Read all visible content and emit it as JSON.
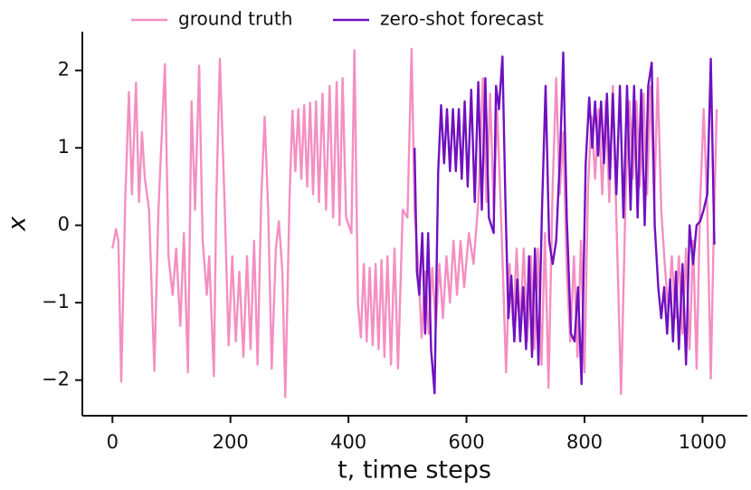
{
  "chart_data": {
    "type": "line",
    "xlabel": "t, time steps",
    "ylabel": "x",
    "xlim": [
      -51,
      1076
    ],
    "ylim": [
      -2.46,
      2.5
    ],
    "xticks": [
      0,
      200,
      400,
      600,
      800,
      1000
    ],
    "yticks": [
      {
        "value": -2,
        "label": "−2"
      },
      {
        "value": -1,
        "label": "−1"
      },
      0,
      1,
      2
    ],
    "legend": "top",
    "series": [
      {
        "name": "ground truth",
        "color": "#f48fc1",
        "x": [
          0,
          6,
          10,
          15,
          22,
          28,
          33,
          40,
          45,
          50,
          55,
          62,
          71,
          78,
          89,
          95,
          102,
          108,
          115,
          121,
          128,
          134,
          140,
          147,
          153,
          160,
          164,
          172,
          176,
          182,
          190,
          197,
          203,
          209,
          215,
          222,
          228,
          234,
          240,
          246,
          252,
          258,
          264,
          270,
          277,
          282,
          288,
          293,
          300,
          305,
          310,
          315,
          320,
          325,
          330,
          335,
          340,
          345,
          350,
          356,
          362,
          368,
          374,
          380,
          385,
          390,
          396,
          405,
          410,
          416,
          421,
          426,
          431,
          436,
          441,
          446,
          451,
          456,
          461,
          466,
          472,
          478,
          484,
          492,
          500,
          507,
          512,
          518,
          524,
          530,
          536,
          542,
          548,
          554,
          560,
          566,
          572,
          578,
          584,
          590,
          596,
          604,
          612,
          620,
          628,
          634,
          640,
          646,
          652,
          660,
          667,
          673,
          679,
          685,
          691,
          697,
          703,
          709,
          715,
          721,
          727,
          733,
          739,
          746,
          752,
          758,
          764,
          770,
          776,
          782,
          788,
          794,
          800,
          806,
          812,
          818,
          824,
          830,
          836,
          842,
          848,
          854,
          862,
          870,
          876,
          882,
          888,
          894,
          900,
          906,
          912,
          918,
          924,
          930,
          936,
          942,
          948,
          954,
          960,
          966,
          972,
          978,
          984,
          990,
          996,
          1002,
          1008,
          1014,
          1019,
          1024
        ],
        "values": [
          -0.3,
          -0.05,
          -0.2,
          -2.02,
          0.4,
          1.72,
          0.4,
          1.84,
          0.3,
          1.2,
          0.6,
          0.2,
          -1.88,
          0.2,
          2.08,
          -0.4,
          -0.9,
          -0.3,
          -1.3,
          -0.1,
          -1.9,
          1.6,
          0.2,
          2.06,
          -0.2,
          -0.9,
          -0.4,
          -1.95,
          0.3,
          2.15,
          0.3,
          -1.55,
          -0.4,
          -1.5,
          -0.6,
          -1.7,
          -0.4,
          -1.6,
          -0.2,
          -1.8,
          0.3,
          1.4,
          0.2,
          -1.85,
          -0.3,
          0.05,
          -0.6,
          -2.22,
          0.3,
          1.48,
          0.7,
          1.5,
          0.6,
          1.55,
          0.5,
          1.58,
          0.4,
          1.6,
          0.3,
          1.7,
          0.2,
          1.8,
          0.1,
          1.85,
          0,
          1.9,
          0.1,
          -0.1,
          2.26,
          -1.0,
          -1.45,
          -0.5,
          -1.5,
          -0.55,
          -1.55,
          -0.5,
          -1.6,
          -0.45,
          -1.7,
          -0.4,
          -1.8,
          -0.3,
          -1.85,
          0.2,
          0.1,
          2.28,
          0.2,
          -0.5,
          -1.45,
          -0.6,
          -1.4,
          -0.55,
          -1.3,
          -0.5,
          -1.2,
          -0.4,
          -1.0,
          -0.2,
          -0.9,
          -0.2,
          -0.8,
          -0.1,
          -0.5,
          0.3,
          1.9,
          0.3,
          1.7,
          0.2,
          1.5,
          -0.2,
          -1.9,
          -0.5,
          -1.3,
          -0.3,
          -1.3,
          -0.3,
          -1.5,
          -0.4,
          -1.6,
          -0.3,
          -1.8,
          -0.1,
          -2.1,
          0.5,
          1.9,
          0.4,
          1.2,
          -0.6,
          -1.5,
          -0.4,
          -1.7,
          -0.2,
          -1.9,
          0.5,
          1.4,
          0.6,
          1.5,
          0.4,
          1.6,
          0.3,
          1.8,
          0.1,
          -2.18,
          0.5,
          1.6,
          0.6,
          1.6,
          0.5,
          1.7,
          0.4,
          1.8,
          0.3,
          1.9,
          0.2,
          -0.5,
          -1.1,
          -0.4,
          -1.2,
          -0.4,
          -1.4,
          -0.3,
          -1.6,
          -0.2,
          -1.85,
          0.3,
          1.5,
          0.2,
          -1.98,
          -0.1,
          1.5
        ]
      },
      {
        "name": "zero-shot forecast",
        "color": "#7010c0",
        "x": [
          512,
          516,
          520,
          525,
          530,
          535,
          540,
          546,
          552,
          557,
          562,
          567,
          572,
          577,
          582,
          587,
          592,
          597,
          602,
          608,
          614,
          620,
          626,
          632,
          638,
          646,
          650,
          655,
          661,
          666,
          671,
          676,
          681,
          686,
          691,
          696,
          701,
          706,
          711,
          716,
          722,
          728,
          734,
          740,
          746,
          752,
          759,
          764,
          770,
          777,
          783,
          789,
          795,
          802,
          808,
          813,
          818,
          823,
          828,
          833,
          838,
          843,
          848,
          854,
          860,
          866,
          872,
          878,
          884,
          890,
          896,
          902,
          908,
          914,
          919,
          925,
          930,
          935,
          940,
          945,
          950,
          955,
          960,
          966,
          972,
          978,
          984,
          990,
          996,
          1002,
          1008,
          1014,
          1020
        ],
        "values": [
          1.0,
          -0.6,
          -0.9,
          -0.1,
          -1.4,
          -0.1,
          -1.6,
          -2.17,
          0.7,
          1.55,
          0.8,
          1.5,
          0.7,
          1.5,
          0.7,
          1.5,
          0.6,
          1.6,
          0.5,
          1.75,
          0.3,
          1.85,
          0.2,
          1.9,
          0.1,
          -0.1,
          1.8,
          1.5,
          2.18,
          0.3,
          -1.2,
          -0.65,
          -1.5,
          -0.7,
          -1.5,
          -0.8,
          -1.6,
          -0.4,
          -1.7,
          -0.3,
          -1.8,
          0.2,
          1.8,
          -0.2,
          -0.5,
          -0.2,
          1.0,
          2.23,
          0.1,
          -1.4,
          -1.5,
          -0.8,
          -2.05,
          0.8,
          1.65,
          1.0,
          1.6,
          0.9,
          1.6,
          0.8,
          1.7,
          0.6,
          1.7,
          0.4,
          1.8,
          0.1,
          1.8,
          0.2,
          1.8,
          0.1,
          1.75,
          0.0,
          1.8,
          2.1,
          0.0,
          -0.8,
          -1.2,
          -0.8,
          -1.4,
          -0.7,
          -1.5,
          -0.6,
          -1.6,
          -0.5,
          -1.8,
          0.0,
          -0.5,
          0.0,
          0.05,
          0.2,
          0.4,
          2.15,
          -0.25
        ]
      }
    ]
  }
}
